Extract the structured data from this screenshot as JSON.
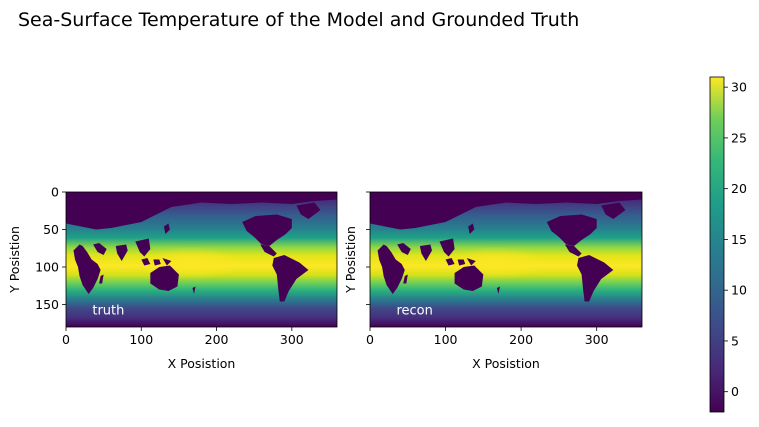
{
  "figure": {
    "title": "Sea-Surface Temperature of the Model and Grounded Truth"
  },
  "colors": {
    "viridis_low": "#440154",
    "viridis_mid": "#21918c",
    "viridis_high": "#fde725",
    "land": "#440154"
  },
  "chart_data": [
    {
      "type": "heatmap",
      "title": "",
      "annotation": "truth",
      "xlabel": "X Posistion",
      "ylabel": "Y Posistion",
      "xlim": [
        0,
        360
      ],
      "ylim": [
        180,
        0
      ],
      "xticks": [
        0,
        100,
        200,
        300
      ],
      "yticks": [
        0,
        50,
        100,
        150
      ],
      "grid": false
    },
    {
      "type": "heatmap",
      "title": "",
      "annotation": "recon",
      "xlabel": "X Posistion",
      "ylabel": "Y Posistion",
      "xlim": [
        0,
        360
      ],
      "ylim": [
        180,
        0
      ],
      "xticks": [
        0,
        100,
        200,
        300
      ],
      "yticks": [
        0,
        50,
        100,
        150
      ],
      "grid": false
    }
  ],
  "colorbar": {
    "colormap": "viridis",
    "min": -2,
    "max": 31,
    "ticks": [
      0,
      5,
      10,
      15,
      20,
      25,
      30
    ]
  }
}
